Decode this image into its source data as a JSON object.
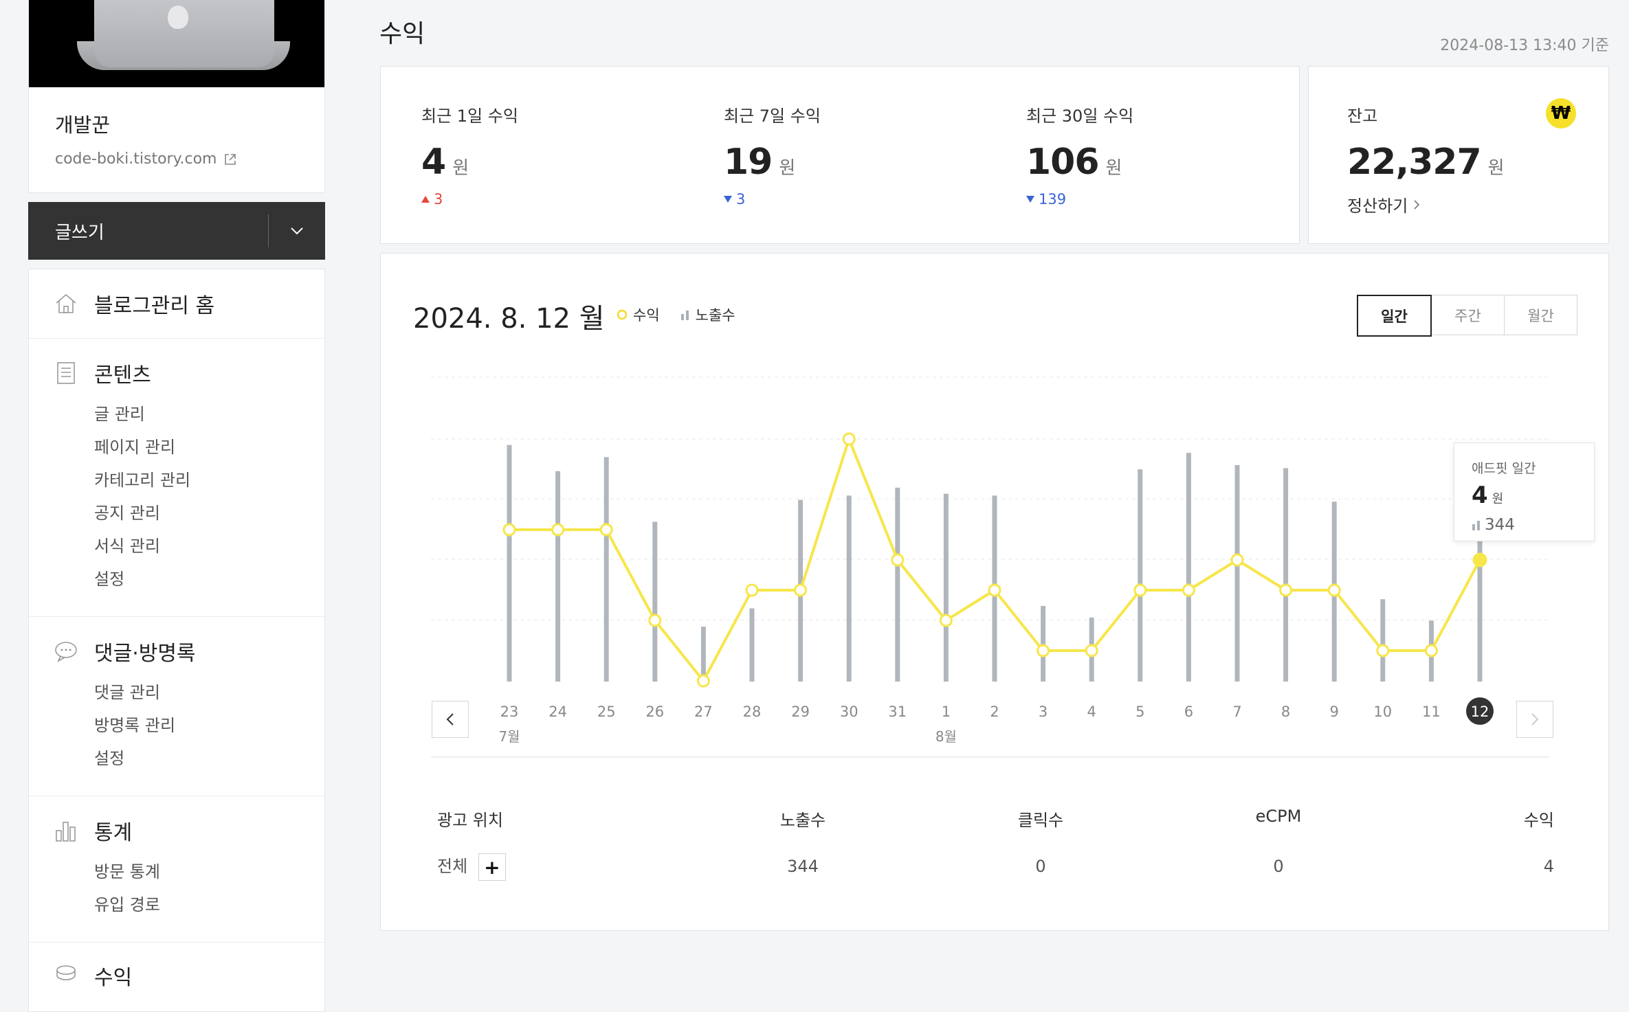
{
  "sidebar": {
    "blog_name": "개발꾼",
    "blog_url": "code-boki.tistory.com",
    "write_label": "글쓰기",
    "menu": [
      {
        "title": "블로그관리 홈",
        "icon": "home-icon",
        "items": []
      },
      {
        "title": "콘텐츠",
        "icon": "document-icon",
        "items": [
          "글 관리",
          "페이지 관리",
          "카테고리 관리",
          "공지 관리",
          "서식 관리",
          "설정"
        ]
      },
      {
        "title": "댓글·방명록",
        "icon": "comment-icon",
        "items": [
          "댓글 관리",
          "방명록 관리",
          "설정"
        ]
      },
      {
        "title": "통계",
        "icon": "chart-icon",
        "items": [
          "방문 통계",
          "유입 경로"
        ]
      },
      {
        "title": "수익",
        "icon": "coin-icon",
        "items": []
      }
    ]
  },
  "header": {
    "title": "수익",
    "updated": "2024-08-13 13:40 기준"
  },
  "stats": [
    {
      "label": "최근 1일 수익",
      "value": "4",
      "unit": "원",
      "delta": "3",
      "direction": "up"
    },
    {
      "label": "최근 7일 수익",
      "value": "19",
      "unit": "원",
      "delta": "3",
      "direction": "down"
    },
    {
      "label": "최근 30일 수익",
      "value": "106",
      "unit": "원",
      "delta": "139",
      "direction": "down"
    }
  ],
  "balance": {
    "label": "잔고",
    "value": "22,327",
    "unit": "원",
    "settle_label": "정산하기",
    "icon": "won-icon",
    "icon_glyph": "₩"
  },
  "chart_panel": {
    "date": "2024. 8. 12 월",
    "legend_revenue": "수익",
    "legend_impressions": "노출수",
    "period_tabs": [
      "일간",
      "주간",
      "월간"
    ],
    "active_tab": 0,
    "tooltip": {
      "label": "애드핏 일간",
      "value": "4",
      "unit": "원",
      "impressions": "344"
    }
  },
  "chart_data": {
    "type": "bar+line",
    "categories": [
      "23",
      "24",
      "25",
      "26",
      "27",
      "28",
      "29",
      "30",
      "31",
      "1",
      "2",
      "3",
      "4",
      "5",
      "6",
      "7",
      "8",
      "9",
      "10",
      "11",
      "12"
    ],
    "month_labels": [
      {
        "index": 0,
        "label": "7월"
      },
      {
        "index": 9,
        "label": "8월"
      }
    ],
    "selected_index": 20,
    "series": [
      {
        "name": "노출수",
        "type": "bar",
        "values": [
          388,
          345,
          368,
          262,
          90,
          120,
          298,
          305,
          318,
          308,
          305,
          124,
          105,
          348,
          375,
          355,
          350,
          295,
          135,
          100,
          344
        ]
      },
      {
        "name": "수익",
        "type": "line",
        "values": [
          5,
          5,
          5,
          2,
          0,
          3,
          3,
          8,
          4,
          2,
          3,
          1,
          1,
          3,
          3,
          4,
          3,
          3,
          1,
          1,
          4
        ]
      }
    ],
    "colors": {
      "bar": "#b1b6bd",
      "line": "#f7e64a",
      "selected": "#333333"
    }
  },
  "ad_table": {
    "headers": [
      "광고 위치",
      "노출수",
      "클릭수",
      "eCPM",
      "수익"
    ],
    "rows": [
      {
        "position": "전체",
        "impressions": "344",
        "clicks": "0",
        "ecpm": "0",
        "revenue": "4"
      }
    ]
  }
}
